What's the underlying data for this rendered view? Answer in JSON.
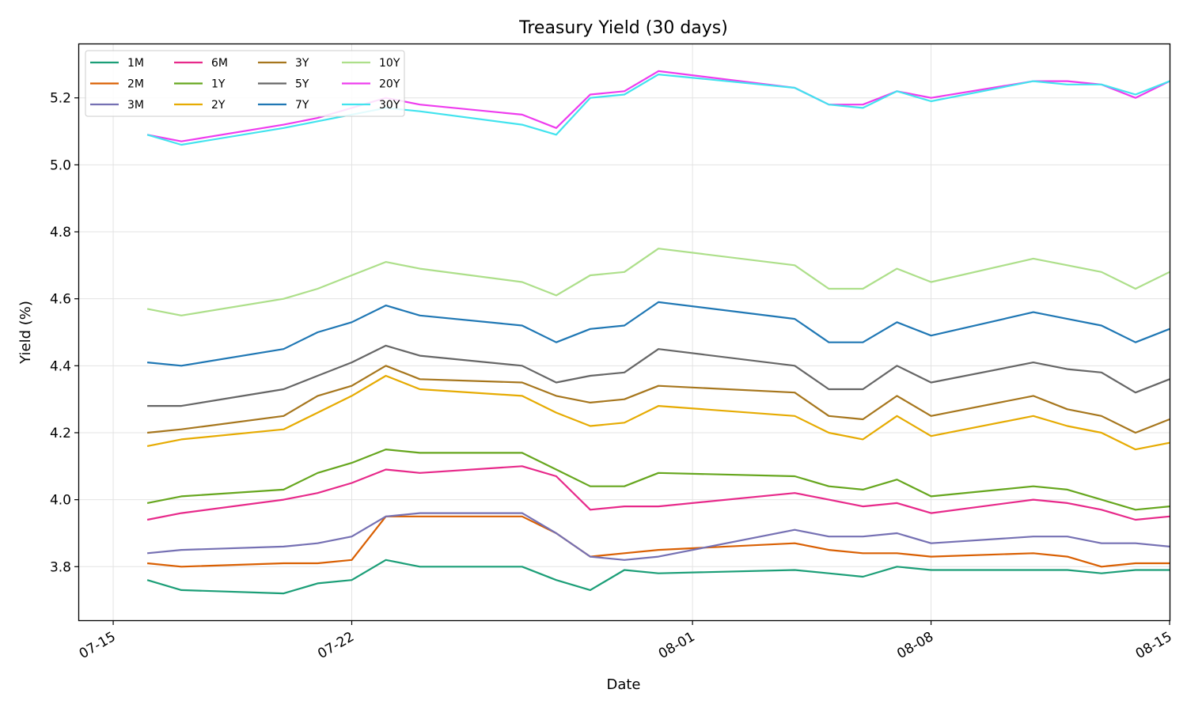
{
  "chart_data": {
    "type": "line",
    "title": "Treasury Yield (30 days)",
    "xlabel": "Date",
    "ylabel": "Yield (%)",
    "ylim": [
      3.64,
      5.36
    ],
    "xlim": [
      "2024-07-14",
      "2024-08-15"
    ],
    "grid": true,
    "legend": {
      "position": "top-left",
      "columns": 4
    },
    "yticks": [
      3.8,
      4.0,
      4.2,
      4.4,
      4.6,
      4.8,
      5.0,
      5.2
    ],
    "ytick_labels": [
      "3.8",
      "4.0",
      "4.2",
      "4.4",
      "4.6",
      "4.8",
      "5.0",
      "5.2"
    ],
    "xticks": [
      "2024-07-15",
      "2024-07-22",
      "2024-08-01",
      "2024-08-08",
      "2024-08-15"
    ],
    "xtick_labels": [
      "07-15",
      "07-22",
      "08-01",
      "08-08",
      "08-15"
    ],
    "x": [
      "2024-07-16",
      "2024-07-17",
      "2024-07-20",
      "2024-07-21",
      "2024-07-22",
      "2024-07-23",
      "2024-07-24",
      "2024-07-27",
      "2024-07-28",
      "2024-07-29",
      "2024-07-30",
      "2024-07-31",
      "2024-08-04",
      "2024-08-05",
      "2024-08-06",
      "2024-08-07",
      "2024-08-08",
      "2024-08-11",
      "2024-08-12",
      "2024-08-13",
      "2024-08-14",
      "2024-08-15"
    ],
    "series": [
      {
        "name": "1M",
        "color": "#1b9e77",
        "values": [
          3.76,
          3.73,
          3.72,
          3.75,
          3.76,
          3.82,
          3.8,
          3.8,
          3.76,
          3.73,
          3.79,
          3.78,
          3.79,
          3.78,
          3.77,
          3.8,
          3.79,
          3.79,
          3.79,
          3.78,
          3.79,
          3.79
        ]
      },
      {
        "name": "2M",
        "color": "#d95f02",
        "values": [
          3.81,
          3.8,
          3.81,
          3.81,
          3.82,
          3.95,
          3.95,
          3.95,
          3.9,
          3.83,
          3.84,
          3.85,
          3.87,
          3.85,
          3.84,
          3.84,
          3.83,
          3.84,
          3.83,
          3.8,
          3.81,
          3.81
        ]
      },
      {
        "name": "3M",
        "color": "#7570b3",
        "values": [
          3.84,
          3.85,
          3.86,
          3.87,
          3.89,
          3.95,
          3.96,
          3.96,
          3.9,
          3.83,
          3.82,
          3.83,
          3.91,
          3.89,
          3.89,
          3.9,
          3.87,
          3.89,
          3.89,
          3.87,
          3.87,
          3.86
        ]
      },
      {
        "name": "6M",
        "color": "#e7298a",
        "values": [
          3.94,
          3.96,
          4.0,
          4.02,
          4.05,
          4.09,
          4.08,
          4.1,
          4.07,
          3.97,
          3.98,
          3.98,
          4.02,
          4.0,
          3.98,
          3.99,
          3.96,
          4.0,
          3.99,
          3.97,
          3.94,
          3.95
        ]
      },
      {
        "name": "1Y",
        "color": "#66a61e",
        "values": [
          3.99,
          4.01,
          4.03,
          4.08,
          4.11,
          4.15,
          4.14,
          4.14,
          4.09,
          4.04,
          4.04,
          4.08,
          4.07,
          4.04,
          4.03,
          4.06,
          4.01,
          4.04,
          4.03,
          4.0,
          3.97,
          3.98
        ]
      },
      {
        "name": "2Y",
        "color": "#e6ab02",
        "values": [
          4.16,
          4.18,
          4.21,
          4.26,
          4.31,
          4.37,
          4.33,
          4.31,
          4.26,
          4.22,
          4.23,
          4.28,
          4.25,
          4.2,
          4.18,
          4.25,
          4.19,
          4.25,
          4.22,
          4.2,
          4.15,
          4.17
        ]
      },
      {
        "name": "3Y",
        "color": "#a6761d",
        "values": [
          4.2,
          4.21,
          4.25,
          4.31,
          4.34,
          4.4,
          4.36,
          4.35,
          4.31,
          4.29,
          4.3,
          4.34,
          4.32,
          4.25,
          4.24,
          4.31,
          4.25,
          4.31,
          4.27,
          4.25,
          4.2,
          4.24
        ]
      },
      {
        "name": "5Y",
        "color": "#666666",
        "values": [
          4.28,
          4.28,
          4.33,
          4.37,
          4.41,
          4.46,
          4.43,
          4.4,
          4.35,
          4.37,
          4.38,
          4.45,
          4.4,
          4.33,
          4.33,
          4.4,
          4.35,
          4.41,
          4.39,
          4.38,
          4.32,
          4.36
        ]
      },
      {
        "name": "7Y",
        "color": "#1f77b4",
        "values": [
          4.41,
          4.4,
          4.45,
          4.5,
          4.53,
          4.58,
          4.55,
          4.52,
          4.47,
          4.51,
          4.52,
          4.59,
          4.54,
          4.47,
          4.47,
          4.53,
          4.49,
          4.56,
          4.54,
          4.52,
          4.47,
          4.51
        ]
      },
      {
        "name": "10Y",
        "color": "#addf8a",
        "values": [
          4.57,
          4.55,
          4.6,
          4.63,
          4.67,
          4.71,
          4.69,
          4.65,
          4.61,
          4.67,
          4.68,
          4.75,
          4.7,
          4.63,
          4.63,
          4.69,
          4.65,
          4.72,
          4.7,
          4.68,
          4.63,
          4.68
        ]
      },
      {
        "name": "20Y",
        "color": "#ee3cee",
        "values": [
          5.09,
          5.07,
          5.12,
          5.14,
          5.17,
          5.2,
          5.18,
          5.15,
          5.11,
          5.21,
          5.22,
          5.28,
          5.23,
          5.18,
          5.18,
          5.22,
          5.2,
          5.25,
          5.25,
          5.24,
          5.2,
          5.25
        ]
      },
      {
        "name": "30Y",
        "color": "#42e3ee",
        "values": [
          5.09,
          5.06,
          5.11,
          5.13,
          5.15,
          5.17,
          5.16,
          5.12,
          5.09,
          5.2,
          5.21,
          5.27,
          5.23,
          5.18,
          5.17,
          5.22,
          5.19,
          5.25,
          5.24,
          5.24,
          5.21,
          5.25
        ]
      }
    ]
  }
}
